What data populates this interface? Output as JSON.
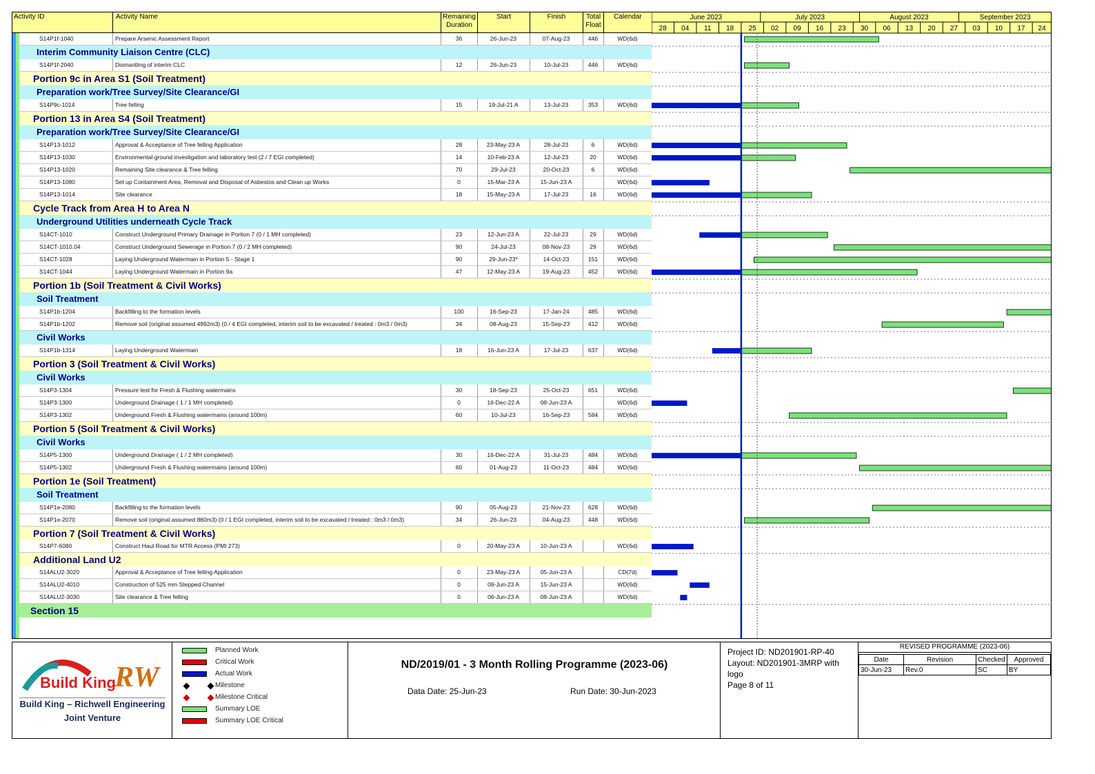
{
  "header": {
    "activity_id": "Activity ID",
    "activity_name": "Activity Name",
    "remaining_duration": "Remaining Duration",
    "start": "Start",
    "finish": "Finish",
    "total_float": "Total Float",
    "calendar": "Calendar"
  },
  "colors": {
    "header_bg": "#ffff99",
    "band_l1": "#ffffc4",
    "band_l2": "#bdf4f7",
    "band_section": "#a8ee98",
    "planned": "#7ce27c",
    "critical": "#e60000",
    "actual": "#0018c8",
    "data_date_line": "#0018c8"
  },
  "rows": [
    {
      "type": "activity",
      "id": "S14P1f-1040",
      "name": "Prepare Arsenic Assessment Report",
      "rd": "36",
      "start": "26-Jun-23",
      "finish": "07-Aug-23",
      "tf": "446",
      "cal": "WD(6d)"
    },
    {
      "type": "band2",
      "name": "Interim Community Liaison Centre (CLC)"
    },
    {
      "type": "activity",
      "id": "S14P1f-2040",
      "name": "Dismantling of interim CLC",
      "rd": "12",
      "start": "26-Jun-23",
      "finish": "10-Jul-23",
      "tf": "446",
      "cal": "WD(6d)"
    },
    {
      "type": "band1",
      "name": "Portion 9c in Area S1   (Soil Treatment)"
    },
    {
      "type": "band2",
      "name": "Preparation work/Tree Survey/Site Clearance/GI"
    },
    {
      "type": "activity",
      "id": "S14P9c-1014",
      "name": "Tree felling",
      "rd": "15",
      "start": "19-Jul-21 A",
      "finish": "13-Jul-23",
      "tf": "353",
      "cal": "WD(6d)"
    },
    {
      "type": "band1",
      "name": "Portion 13 in Area S4   (Soil Treatment)"
    },
    {
      "type": "band2",
      "name": "Preparation work/Tree Survey/Site Clearance/GI"
    },
    {
      "type": "activity",
      "id": "S14P13-1012",
      "name": "Approval & Acceptance of Tree felling Application",
      "rd": "28",
      "start": "23-May-23 A",
      "finish": "28-Jul-23",
      "tf": "6",
      "cal": "WD(6d)"
    },
    {
      "type": "activity",
      "id": "S14P13-1030",
      "name": "Environmental ground investigation and laboratory test (2 / 7 EGI completed)",
      "rd": "14",
      "start": "10-Feb-23 A",
      "finish": "12-Jul-23",
      "tf": "20",
      "cal": "WD(6d)"
    },
    {
      "type": "activity",
      "id": "S14P13-1020",
      "name": "Remaining Site clearance & Tree felling",
      "rd": "70",
      "start": "29-Jul-23",
      "finish": "20-Oct-23",
      "tf": "6",
      "cal": "WD(6d)"
    },
    {
      "type": "activity",
      "id": "S14P13-1080",
      "name": "Set up Containment Area, Removal and Disposal of Asbestos and Clean up Works",
      "rd": "0",
      "start": "15-Mar-23 A",
      "finish": "15-Jun-23 A",
      "tf": "",
      "cal": "WD(6d)"
    },
    {
      "type": "activity",
      "id": "S14P13-1014",
      "name": "Site clearance",
      "rd": "18",
      "start": "15-May-23 A",
      "finish": "17-Jul-23",
      "tf": "16",
      "cal": "WD(6d)"
    },
    {
      "type": "band1",
      "name": "Cycle Track from Area H to Area N"
    },
    {
      "type": "band2",
      "name": "Underground Utilities underneath Cycle Track"
    },
    {
      "type": "activity",
      "id": "S14CT-1010",
      "name": "Construct Underground Primary Drainage in Portion 7 (0 / 1 MH completed)",
      "rd": "23",
      "start": "12-Jun-23 A",
      "finish": "22-Jul-23",
      "tf": "29",
      "cal": "WD(6d)"
    },
    {
      "type": "activity",
      "id": "S14CT-1010.04",
      "name": "Construct Underground Sewerage in Portion 7 (0 / 2 MH completed)",
      "rd": "90",
      "start": "24-Jul-23",
      "finish": "08-Nov-23",
      "tf": "29",
      "cal": "WD(6d)"
    },
    {
      "type": "activity",
      "id": "S14CT-1028",
      "name": "Laying Underground Watermain in Portion 5  - Stage 1",
      "rd": "90",
      "start": "29-Jun-23*",
      "finish": "14-Oct-23",
      "tf": "151",
      "cal": "WD(6d)"
    },
    {
      "type": "activity",
      "id": "S14CT-1044",
      "name": "Laying Underground Watermain in Portion 9a",
      "rd": "47",
      "start": "12-May-23 A",
      "finish": "19-Aug-23",
      "tf": "452",
      "cal": "WD(6d)"
    },
    {
      "type": "band1",
      "name": "Portion 1b (Soil Treatment & Civil Works)"
    },
    {
      "type": "band2",
      "name": "Soil Treatment"
    },
    {
      "type": "activity",
      "id": "S14P1b-1204",
      "name": "Backfilling to the formation levels",
      "rd": "100",
      "start": "16-Sep-23",
      "finish": "17-Jan-24",
      "tf": "485",
      "cal": "WD(6d)"
    },
    {
      "type": "activity",
      "id": "S14P1b-1202",
      "name": "Remove soil (original assumed 4992m3) (0 / 4 EGI completed, interim soil to be excavated / treated : 0m3 / 0m3)",
      "rd": "34",
      "start": "08-Aug-23",
      "finish": "15-Sep-23",
      "tf": "412",
      "cal": "WD(6d)"
    },
    {
      "type": "band2",
      "name": "Civil Works"
    },
    {
      "type": "activity",
      "id": "S14P1b-1314",
      "name": "Laying Underground Watermain",
      "rd": "18",
      "start": "16-Jun-23 A",
      "finish": "17-Jul-23",
      "tf": "637",
      "cal": "WD(6d)"
    },
    {
      "type": "band1",
      "name": "Portion 3 (Soil Treatment & Civil Works)"
    },
    {
      "type": "band2",
      "name": "Civil Works"
    },
    {
      "type": "activity",
      "id": "S14P3-1304",
      "name": "Pressure test for Fresh & Flushing watermains",
      "rd": "30",
      "start": "18-Sep-23",
      "finish": "25-Oct-23",
      "tf": "651",
      "cal": "WD(6d)"
    },
    {
      "type": "activity",
      "id": "S14P3-1300",
      "name": "Underground Drainage ( 1 / 1 MH completed)",
      "rd": "0",
      "start": "16-Dec-22 A",
      "finish": "08-Jun-23 A",
      "tf": "",
      "cal": "WD(6d)"
    },
    {
      "type": "activity",
      "id": "S14P3-1302",
      "name": "Underground Fresh & Flushing watermains (around 100m)",
      "rd": "60",
      "start": "10-Jul-23",
      "finish": "16-Sep-23",
      "tf": "584",
      "cal": "WD(6d)"
    },
    {
      "type": "band1",
      "name": "Portion 5 (Soil Treatment & Civil Works)"
    },
    {
      "type": "band2",
      "name": "Civil Works"
    },
    {
      "type": "activity",
      "id": "S14P5-1300",
      "name": "Underground Drainage ( 1 / 2 MH completed)",
      "rd": "30",
      "start": "16-Dec-22 A",
      "finish": "31-Jul-23",
      "tf": "484",
      "cal": "WD(6d)"
    },
    {
      "type": "activity",
      "id": "S14P5-1302",
      "name": "Underground Fresh & Flushing watermains (around 100m)",
      "rd": "60",
      "start": "01-Aug-23",
      "finish": "11-Oct-23",
      "tf": "484",
      "cal": "WD(6d)"
    },
    {
      "type": "band1",
      "name": "Portion 1e (Soil Treatment)"
    },
    {
      "type": "band2",
      "name": "Soil Treatment"
    },
    {
      "type": "activity",
      "id": "S14P1e-2080",
      "name": "Backfilling to the formation levels",
      "rd": "90",
      "start": "05-Aug-23",
      "finish": "21-Nov-23",
      "tf": "628",
      "cal": "WD(6d)"
    },
    {
      "type": "activity",
      "id": "S14P1e-2070",
      "name": "Remove soil (original assumed 860m3) (0 / 1 EGI completed, interim soil to be excavated / treated : 0m3 / 0m3)",
      "rd": "34",
      "start": "26-Jun-23",
      "finish": "04-Aug-23",
      "tf": "448",
      "cal": "WD(6d)"
    },
    {
      "type": "band1",
      "name": "Portion 7 (Soil Treatment & Civil Works)"
    },
    {
      "type": "activity",
      "id": "S14P7-6080",
      "name": "Construct Haul Road for MTR Access  (PMI 273)",
      "rd": "0",
      "start": "20-May-23 A",
      "finish": "10-Jun-23 A",
      "tf": "",
      "cal": "WD(6d)"
    },
    {
      "type": "band1",
      "name": "Additional Land U2"
    },
    {
      "type": "activity",
      "id": "S14ALU2-3020",
      "name": "Approval & Acceptance of Tree felling Application",
      "rd": "0",
      "start": "23-May-23 A",
      "finish": "05-Jun-23 A",
      "tf": "",
      "cal": "CD(7d)"
    },
    {
      "type": "activity",
      "id": "S14ALU2-4010",
      "name": "Construction of 525 mm Stepped Channel",
      "rd": "0",
      "start": "09-Jun-23 A",
      "finish": "15-Jun-23 A",
      "tf": "",
      "cal": "WD(6d)"
    },
    {
      "type": "activity",
      "id": "S14ALU2-3030",
      "name": "Site clearance & Tree felling",
      "rd": "0",
      "start": "06-Jun-23 A",
      "finish": "08-Jun-23 A",
      "tf": "",
      "cal": "WD(6d)"
    },
    {
      "type": "section",
      "name": "Section 15"
    }
  ],
  "chart_data": {
    "type": "gantt",
    "data_date": "2023-06-25",
    "x_range": [
      "2023-05-28",
      "2023-09-30"
    ],
    "months": [
      "June 2023",
      "July 2023",
      "August 2023",
      "September 2023"
    ],
    "weeks": [
      "28",
      "04",
      "11",
      "18",
      "25",
      "02",
      "09",
      "16",
      "23",
      "30",
      "06",
      "13",
      "20",
      "27",
      "03",
      "10",
      "17",
      "24"
    ],
    "bars": [
      {
        "row": 0,
        "kind": "planned",
        "from": "2023-06-26",
        "to": "2023-08-07"
      },
      {
        "row": 2,
        "kind": "planned",
        "from": "2023-06-26",
        "to": "2023-07-10"
      },
      {
        "row": 5,
        "kind": "actual",
        "from": "2023-05-28",
        "to": "2023-06-25"
      },
      {
        "row": 5,
        "kind": "planned",
        "from": "2023-06-25",
        "to": "2023-07-13"
      },
      {
        "row": 8,
        "kind": "actual",
        "from": "2023-05-28",
        "to": "2023-06-25"
      },
      {
        "row": 8,
        "kind": "planned",
        "from": "2023-06-25",
        "to": "2023-07-28"
      },
      {
        "row": 9,
        "kind": "actual",
        "from": "2023-05-28",
        "to": "2023-06-25"
      },
      {
        "row": 9,
        "kind": "planned",
        "from": "2023-06-25",
        "to": "2023-07-12"
      },
      {
        "row": 10,
        "kind": "planned",
        "from": "2023-07-29",
        "to": "2023-09-30"
      },
      {
        "row": 11,
        "kind": "actual",
        "from": "2023-05-28",
        "to": "2023-06-15"
      },
      {
        "row": 12,
        "kind": "actual",
        "from": "2023-05-28",
        "to": "2023-06-25"
      },
      {
        "row": 12,
        "kind": "planned",
        "from": "2023-06-25",
        "to": "2023-07-17"
      },
      {
        "row": 15,
        "kind": "actual",
        "from": "2023-06-12",
        "to": "2023-06-25"
      },
      {
        "row": 15,
        "kind": "planned",
        "from": "2023-06-25",
        "to": "2023-07-22"
      },
      {
        "row": 16,
        "kind": "planned",
        "from": "2023-07-24",
        "to": "2023-09-30"
      },
      {
        "row": 17,
        "kind": "planned",
        "from": "2023-06-29",
        "to": "2023-09-30"
      },
      {
        "row": 18,
        "kind": "actual",
        "from": "2023-05-28",
        "to": "2023-06-25"
      },
      {
        "row": 18,
        "kind": "planned",
        "from": "2023-06-25",
        "to": "2023-08-19"
      },
      {
        "row": 21,
        "kind": "planned",
        "from": "2023-09-16",
        "to": "2023-09-30"
      },
      {
        "row": 22,
        "kind": "planned",
        "from": "2023-08-08",
        "to": "2023-09-15"
      },
      {
        "row": 24,
        "kind": "actual",
        "from": "2023-06-16",
        "to": "2023-06-25"
      },
      {
        "row": 24,
        "kind": "planned",
        "from": "2023-06-25",
        "to": "2023-07-17"
      },
      {
        "row": 27,
        "kind": "planned",
        "from": "2023-09-18",
        "to": "2023-09-30"
      },
      {
        "row": 28,
        "kind": "actual",
        "from": "2023-05-28",
        "to": "2023-06-08"
      },
      {
        "row": 29,
        "kind": "planned",
        "from": "2023-07-10",
        "to": "2023-09-16"
      },
      {
        "row": 32,
        "kind": "actual",
        "from": "2023-05-28",
        "to": "2023-06-25"
      },
      {
        "row": 32,
        "kind": "planned",
        "from": "2023-06-25",
        "to": "2023-07-31"
      },
      {
        "row": 33,
        "kind": "planned",
        "from": "2023-08-01",
        "to": "2023-09-30"
      },
      {
        "row": 36,
        "kind": "planned",
        "from": "2023-08-05",
        "to": "2023-09-30"
      },
      {
        "row": 37,
        "kind": "planned",
        "from": "2023-06-26",
        "to": "2023-08-04"
      },
      {
        "row": 39,
        "kind": "actual",
        "from": "2023-05-28",
        "to": "2023-06-10"
      },
      {
        "row": 41,
        "kind": "actual",
        "from": "2023-05-28",
        "to": "2023-06-05"
      },
      {
        "row": 42,
        "kind": "actual",
        "from": "2023-06-09",
        "to": "2023-06-15"
      },
      {
        "row": 43,
        "kind": "actual",
        "from": "2023-06-06",
        "to": "2023-06-08"
      }
    ]
  },
  "footer": {
    "logo_name": "Build King",
    "logo_rw": "RW",
    "company_line1": "Build King – Richwell Engineering",
    "company_line2": "Joint Venture",
    "legend": [
      {
        "label": "Planned Work",
        "kind": "planned"
      },
      {
        "label": "Critical Work",
        "kind": "critical"
      },
      {
        "label": "Actual Work",
        "kind": "actual"
      },
      {
        "label": "Milestone",
        "kind": "milestone"
      },
      {
        "label": "Milestone Critical",
        "kind": "milestone_critical"
      },
      {
        "label": "Summary LOE",
        "kind": "planned"
      },
      {
        "label": "Summary LOE Critical",
        "kind": "critical"
      }
    ],
    "title": "ND/2019/01 - 3 Month Rolling Programme (2023-06)",
    "data_date": "Data Date: 25-Jun-23",
    "run_date": "Run Date: 30-Jun-2023",
    "project_id": "Project ID: ND201901-RP-40",
    "layout": "Layout: ND201901-3MRP with logo",
    "page": "Page 8 of 11",
    "revision_title": "REVISED PROGRAMME (2023-06)",
    "rev_headers": [
      "Date",
      "Revision",
      "Checked",
      "Approved"
    ],
    "rev_row": [
      "30-Jun-23",
      "Rev.0",
      "SC",
      "BY"
    ]
  }
}
